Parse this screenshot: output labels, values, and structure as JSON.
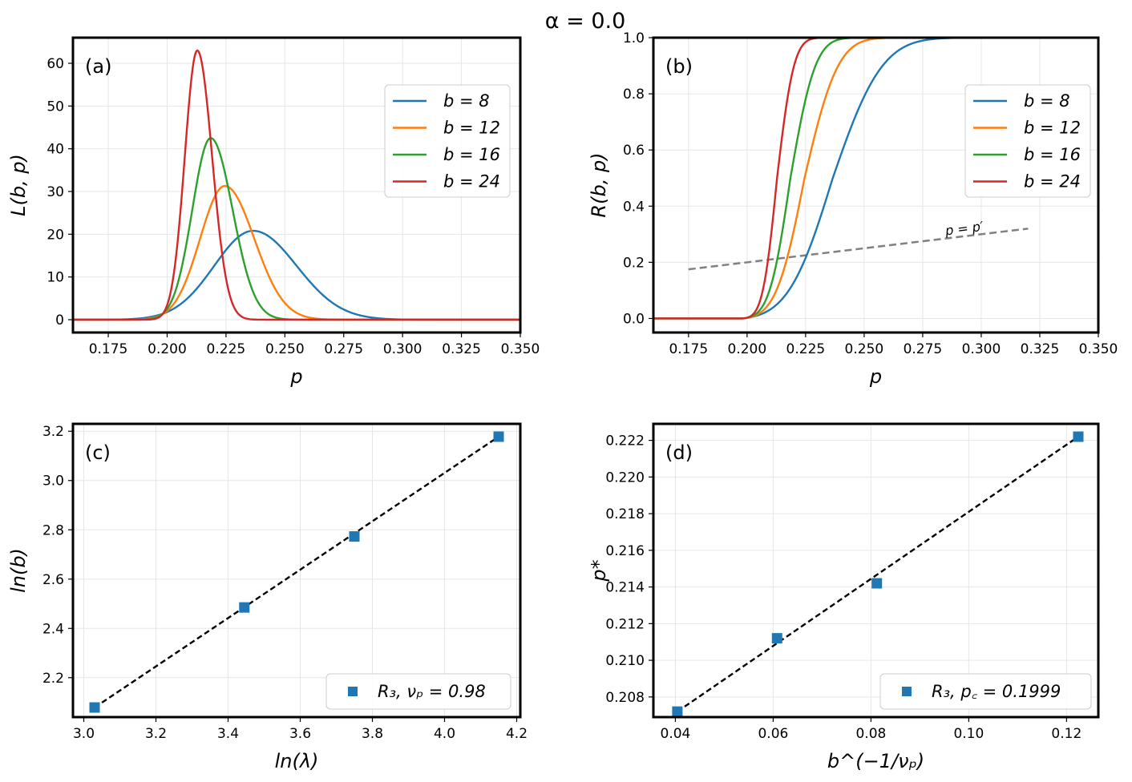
{
  "figure_title": "α = 0.0",
  "colors": {
    "b8": "#1f77b4",
    "b12": "#ff7f0e",
    "b16": "#2ca02c",
    "b24": "#d62728",
    "marker": "#1f77b4",
    "dashed_fit": "#000000",
    "dashed_ref": "#808080"
  },
  "chart_data": [
    {
      "id": "a",
      "panel_label": "(a)",
      "type": "line",
      "title": "",
      "xlabel": "p",
      "ylabel": "L(b, p)",
      "xlim": [
        0.16,
        0.35
      ],
      "ylim": [
        -3,
        66
      ],
      "xticks": [
        0.175,
        0.2,
        0.225,
        0.25,
        0.275,
        0.3,
        0.325,
        0.35
      ],
      "xtick_labels": [
        "0.175",
        "0.200",
        "0.225",
        "0.250",
        "0.275",
        "0.300",
        "0.325",
        "0.350"
      ],
      "yticks": [
        0,
        10,
        20,
        30,
        40,
        50,
        60
      ],
      "ytick_labels": [
        "0",
        "10",
        "20",
        "30",
        "40",
        "50",
        "60"
      ],
      "grid": true,
      "legend_position": "upper-right",
      "series": [
        {
          "name": "b = 8",
          "color_key": "b8",
          "shape": "peak",
          "peak_x": 0.2365,
          "peak_y": 20.8,
          "sigma_left": 0.0165,
          "sigma_right": 0.0185
        },
        {
          "name": "b = 12",
          "color_key": "b12",
          "shape": "peak",
          "peak_x": 0.2245,
          "peak_y": 31.3,
          "sigma_left": 0.0105,
          "sigma_right": 0.0125
        },
        {
          "name": "b = 16",
          "color_key": "b16",
          "shape": "peak",
          "peak_x": 0.2185,
          "peak_y": 42.5,
          "sigma_left": 0.0078,
          "sigma_right": 0.0093
        },
        {
          "name": "b = 24",
          "color_key": "b24",
          "shape": "peak",
          "peak_x": 0.2128,
          "peak_y": 63.0,
          "sigma_left": 0.0053,
          "sigma_right": 0.0063
        }
      ]
    },
    {
      "id": "b",
      "panel_label": "(b)",
      "type": "line",
      "title": "",
      "xlabel": "p",
      "ylabel": "R(b, p)",
      "xlim": [
        0.16,
        0.35
      ],
      "ylim": [
        -0.05,
        1.0
      ],
      "xticks": [
        0.175,
        0.2,
        0.225,
        0.25,
        0.275,
        0.3,
        0.325,
        0.35
      ],
      "xtick_labels": [
        "0.175",
        "0.200",
        "0.225",
        "0.250",
        "0.275",
        "0.300",
        "0.325",
        "0.350"
      ],
      "yticks": [
        0,
        0.2,
        0.4,
        0.6,
        0.8,
        1.0
      ],
      "ytick_labels": [
        "0.0",
        "0.2",
        "0.4",
        "0.6",
        "0.8",
        "1.0"
      ],
      "grid": true,
      "legend_position": "center-right",
      "series": [
        {
          "name": "b = 8",
          "color_key": "b8",
          "shape": "sigmoid",
          "center": 0.2365,
          "sigma_left": 0.0165,
          "sigma_right": 0.0185,
          "x0": 0.198
        },
        {
          "name": "b = 12",
          "color_key": "b12",
          "shape": "sigmoid",
          "center": 0.2245,
          "sigma_left": 0.0105,
          "sigma_right": 0.0125,
          "x0": 0.198
        },
        {
          "name": "b = 16",
          "color_key": "b16",
          "shape": "sigmoid",
          "center": 0.2185,
          "sigma_left": 0.0078,
          "sigma_right": 0.0093,
          "x0": 0.198
        },
        {
          "name": "b = 24",
          "color_key": "b24",
          "shape": "sigmoid",
          "center": 0.2128,
          "sigma_left": 0.0053,
          "sigma_right": 0.0063,
          "x0": 0.198
        }
      ],
      "reference_line": {
        "label": "p = p′",
        "x": [
          0.175,
          0.32
        ],
        "y": [
          0.175,
          0.32
        ],
        "style": "dashed"
      }
    },
    {
      "id": "c",
      "panel_label": "(c)",
      "type": "scatter",
      "title": "",
      "xlabel": "ln(λ)",
      "ylabel": "ln(b)",
      "xlim": [
        2.97,
        4.21
      ],
      "ylim": [
        2.04,
        3.23
      ],
      "xticks": [
        3.0,
        3.2,
        3.4,
        3.6,
        3.8,
        4.0,
        4.2
      ],
      "xtick_labels": [
        "3.0",
        "3.2",
        "3.4",
        "3.6",
        "3.8",
        "4.0",
        "4.2"
      ],
      "yticks": [
        2.2,
        2.4,
        2.6,
        2.8,
        3.0,
        3.2
      ],
      "ytick_labels": [
        "2.2",
        "2.4",
        "2.6",
        "2.8",
        "3.0",
        "3.2"
      ],
      "grid": true,
      "legend_position": "lower-right",
      "legend_label": "R₃, νₚ = 0.98",
      "points": {
        "x": [
          3.03,
          3.445,
          3.75,
          4.15
        ],
        "y": [
          2.079,
          2.485,
          2.773,
          3.178
        ]
      },
      "fit_line": {
        "x": [
          3.03,
          4.15
        ],
        "y": [
          2.079,
          3.178
        ]
      }
    },
    {
      "id": "d",
      "panel_label": "(d)",
      "type": "scatter",
      "title": "",
      "xlabel": "b^(−1/νₚ)",
      "ylabel": "p*",
      "xlim": [
        0.0355,
        0.1265
      ],
      "ylim": [
        0.2069,
        0.2229
      ],
      "xticks": [
        0.04,
        0.06,
        0.08,
        0.1,
        0.12
      ],
      "xtick_labels": [
        "0.04",
        "0.06",
        "0.08",
        "0.10",
        "0.12"
      ],
      "yticks": [
        0.208,
        0.21,
        0.212,
        0.214,
        0.216,
        0.218,
        0.22,
        0.222
      ],
      "ytick_labels": [
        "0.208",
        "0.210",
        "0.212",
        "0.214",
        "0.216",
        "0.218",
        "0.220",
        "0.222"
      ],
      "grid": true,
      "legend_position": "lower-right",
      "legend_label": "R₃, p꜀ = 0.1999",
      "points": {
        "x": [
          0.0404,
          0.0608,
          0.0812,
          0.1224
        ],
        "y": [
          0.2072,
          0.2112,
          0.2142,
          0.2222
        ]
      },
      "fit_line": {
        "x": [
          0.0404,
          0.1224
        ],
        "y": [
          0.2072,
          0.2222
        ]
      }
    }
  ]
}
